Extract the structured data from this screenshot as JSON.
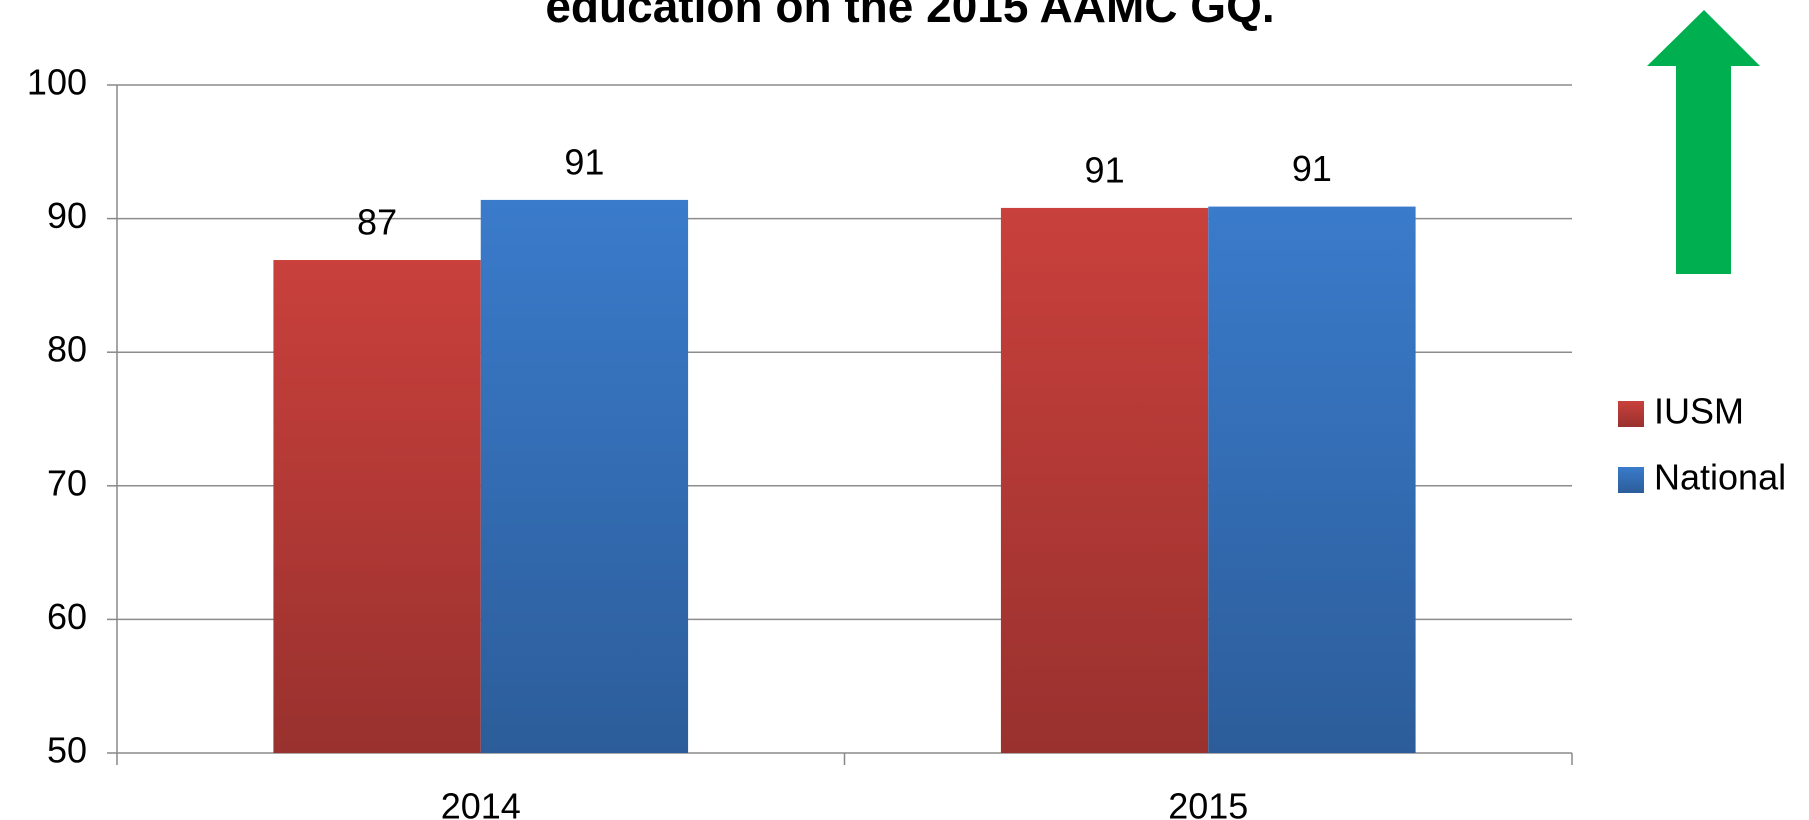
{
  "chart_data": {
    "type": "bar",
    "title": "education on the 2015 AAMC GQ.",
    "categories": [
      "2014",
      "2015"
    ],
    "series": [
      {
        "name": "IUSM",
        "color": "#c9403c",
        "values": [
          86.9,
          90.8
        ],
        "value_labels": [
          "87",
          "91"
        ]
      },
      {
        "name": "National",
        "color": "#3a7bcb",
        "values": [
          91.4,
          90.9
        ],
        "value_labels": [
          "91",
          "91"
        ]
      }
    ],
    "ylim": [
      50,
      100
    ],
    "yticks": [
      50,
      60,
      70,
      80,
      90,
      100
    ],
    "grid": true,
    "legend": "right"
  }
}
